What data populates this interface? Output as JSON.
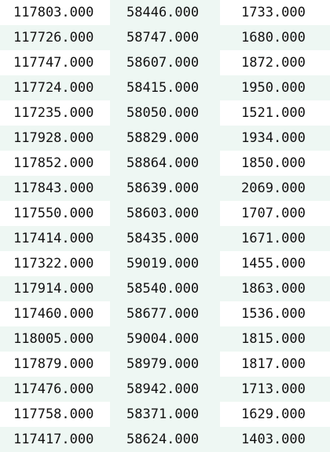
{
  "table": {
    "rows": [
      [
        "117803.000",
        "58446.000",
        "1733.000"
      ],
      [
        "117726.000",
        "58747.000",
        "1680.000"
      ],
      [
        "117747.000",
        "58607.000",
        "1872.000"
      ],
      [
        "117724.000",
        "58415.000",
        "1950.000"
      ],
      [
        "117235.000",
        "58050.000",
        "1521.000"
      ],
      [
        "117928.000",
        "58829.000",
        "1934.000"
      ],
      [
        "117852.000",
        "58864.000",
        "1850.000"
      ],
      [
        "117843.000",
        "58639.000",
        "2069.000"
      ],
      [
        "117550.000",
        "58603.000",
        "1707.000"
      ],
      [
        "117414.000",
        "58435.000",
        "1671.000"
      ],
      [
        "117322.000",
        "59019.000",
        "1455.000"
      ],
      [
        "117914.000",
        "58540.000",
        "1863.000"
      ],
      [
        "117460.000",
        "58677.000",
        "1536.000"
      ],
      [
        "118005.000",
        "59004.000",
        "1815.000"
      ],
      [
        "117879.000",
        "58979.000",
        "1817.000"
      ],
      [
        "117476.000",
        "58942.000",
        "1713.000"
      ],
      [
        "117758.000",
        "58371.000",
        "1629.000"
      ],
      [
        "117417.000",
        "58624.000",
        "1403.000"
      ]
    ]
  }
}
